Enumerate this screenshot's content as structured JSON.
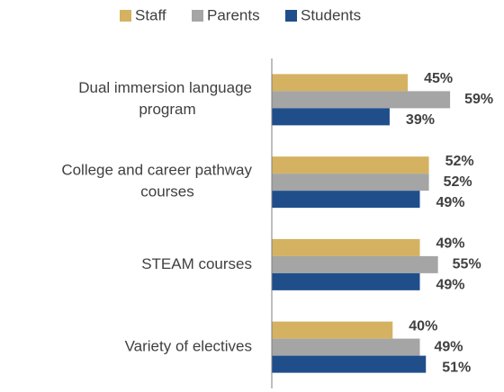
{
  "chart_data": {
    "type": "bar",
    "orientation": "horizontal",
    "categories": [
      "Dual immersion language\nprogram",
      "College and career pathway\ncourses",
      "STEAM courses",
      "Variety of electives"
    ],
    "series": [
      {
        "name": "Staff",
        "color": "#d5b261",
        "values": [
          45,
          52,
          49,
          40
        ],
        "value_labels": [
          "45%",
          "52%",
          "49%",
          "40%"
        ]
      },
      {
        "name": "Parents",
        "color": "#a5a5a5",
        "values": [
          59,
          52,
          55,
          49
        ],
        "value_labels": [
          "59%",
          "52%",
          "55%",
          "49%"
        ]
      },
      {
        "name": "Students",
        "color": "#1f4e8b",
        "values": [
          39,
          49,
          49,
          51
        ],
        "value_labels": [
          "39%",
          "49%",
          "49%",
          "51%"
        ]
      }
    ],
    "xlim": [
      0,
      70
    ],
    "legend": "top"
  }
}
